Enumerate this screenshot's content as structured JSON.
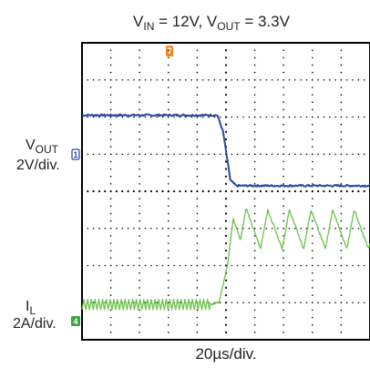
{
  "chart_data": {
    "type": "line",
    "title": {
      "vin_symbol": "V",
      "vin_sub": "IN",
      "vin_value": " = 12V, ",
      "vout_symbol": "V",
      "vout_sub": "OUT",
      "vout_value": " = 3.3V"
    },
    "xlabel": "20µs/div.",
    "x_unit": "div",
    "xlim": [
      0,
      10
    ],
    "ylim": [
      -4,
      4
    ],
    "trigger_marker": "T",
    "grid": true,
    "series": [
      {
        "name": "",
        "channel_marker": "1",
        "axis_label": {
          "symbol": "V",
          "sub": "OUT",
          "scale": "2V/div."
        },
        "color": "#2b4aa0",
        "points": [
          [
            0,
            2.05
          ],
          [
            4.7,
            2.05
          ],
          [
            4.9,
            1.6
          ],
          [
            5.15,
            0.3
          ],
          [
            5.35,
            0.15
          ],
          [
            10,
            0.15
          ]
        ]
      },
      {
        "name": "",
        "channel_marker": "4",
        "axis_label": {
          "symbol": "I",
          "sub": "L",
          "scale": "2A/div."
        },
        "color": "#6cc24a",
        "points": [
          [
            0,
            -3.05
          ],
          [
            4.45,
            -3.05
          ],
          [
            4.75,
            -3.0
          ],
          [
            5.05,
            -2.0
          ],
          [
            5.25,
            -0.75
          ],
          [
            5.5,
            -1.3
          ],
          [
            5.7,
            -0.45
          ],
          [
            6.2,
            -1.55
          ],
          [
            6.45,
            -0.5
          ],
          [
            6.95,
            -1.55
          ],
          [
            7.2,
            -0.5
          ],
          [
            7.7,
            -1.55
          ],
          [
            7.95,
            -0.5
          ],
          [
            8.45,
            -1.55
          ],
          [
            8.7,
            -0.5
          ],
          [
            9.2,
            -1.55
          ],
          [
            9.45,
            -0.5
          ],
          [
            9.95,
            -1.55
          ],
          [
            10,
            -1.4
          ]
        ],
        "ripple_amplitude": 0.25
      }
    ]
  },
  "colors": {
    "vout_trace": "#2b4aa0",
    "il_trace": "#6cc24a",
    "trigger_marker": "#f08a24",
    "grid": "#000000"
  }
}
